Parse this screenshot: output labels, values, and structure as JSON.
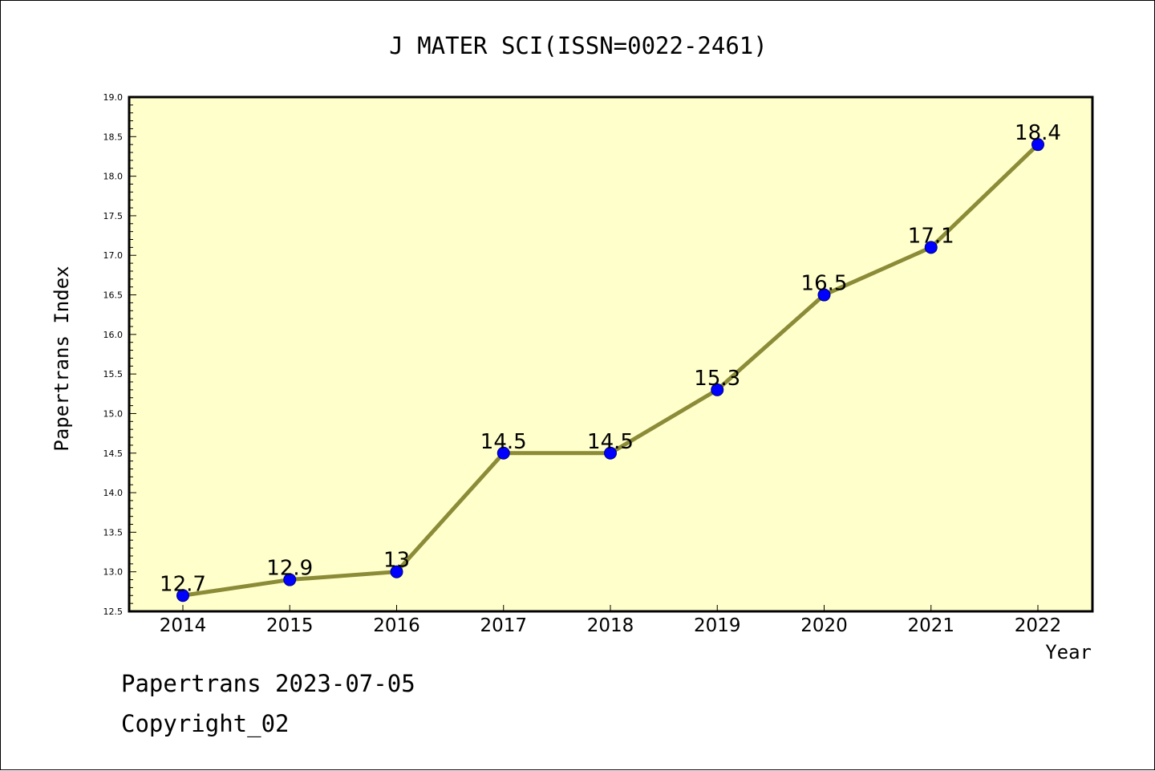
{
  "colors": {
    "plot_background": "#ffffcc",
    "line": "#8b8b38",
    "marker_fill": "#0000ff",
    "marker_edge": "#000080",
    "frame": "#000000"
  },
  "footer": {
    "line1": "Papertrans 2023-07-05",
    "line2": "Copyright_02"
  },
  "chart_data": {
    "type": "line",
    "title": "J MATER SCI(ISSN=0022-2461)",
    "xlabel": "Year",
    "ylabel": "Papertrans Index",
    "x": [
      2014,
      2015,
      2016,
      2017,
      2018,
      2019,
      2020,
      2021,
      2022
    ],
    "series": [
      {
        "values": [
          12.7,
          12.9,
          13.0,
          14.5,
          14.5,
          15.3,
          16.5,
          17.1,
          18.4
        ],
        "data_labels": [
          "12.7",
          "12.9",
          "13",
          "14.5",
          "14.5",
          "15.3",
          "16.5",
          "17.1",
          "18.4"
        ]
      }
    ],
    "ylim": [
      12.5,
      19.0
    ],
    "yticks": [
      "12.5",
      "13.0",
      "13.5",
      "14.0",
      "14.5",
      "15.0",
      "15.5",
      "16.0",
      "16.5",
      "17.0",
      "17.5",
      "18.0",
      "18.5",
      "19.0"
    ],
    "xticks": [
      "2014",
      "2015",
      "2016",
      "2017",
      "2018",
      "2019",
      "2020",
      "2021",
      "2022"
    ],
    "grid": false,
    "legend": "none"
  }
}
